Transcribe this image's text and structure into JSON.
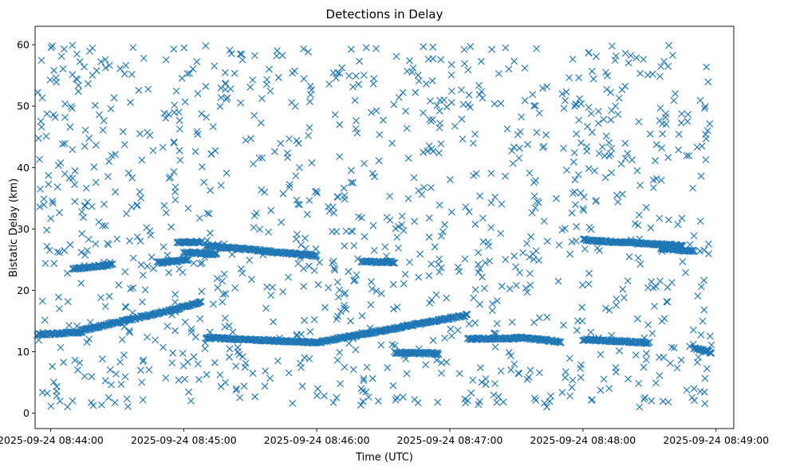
{
  "chart_data": {
    "type": "scatter",
    "title": "Detections in Delay",
    "xlabel": "Time (UTC)",
    "ylabel": "Bistatic Delay (km)",
    "x_axis_type": "time",
    "xlim": [
      "2025-09-24 08:43:53",
      "2025-09-24 08:49:08"
    ],
    "ylim": [
      -2.5,
      63
    ],
    "x_ticks": [
      "2025-09-24 08:44:00",
      "2025-09-24 08:45:00",
      "2025-09-24 08:46:00",
      "2025-09-24 08:47:00",
      "2025-09-24 08:48:00",
      "2025-09-24 08:49:00"
    ],
    "y_ticks": [
      0,
      10,
      20,
      30,
      40,
      50,
      60
    ],
    "marker": "x",
    "marker_color": "#1f77b4",
    "grid": false,
    "series": [
      {
        "description_of_points": "detections",
        "start_time": "2025-09-24 08:43:54",
        "end_time": "2025-09-24 08:48:58",
        "tracks": [
          {
            "t_start": "2025-09-24 08:43:54",
            "t_end": "2025-09-24 08:44:14",
            "y_start": 12.8,
            "y_end": 13.2
          },
          {
            "t_start": "2025-09-24 08:44:14",
            "t_end": "2025-09-24 08:44:57",
            "y_start": 13.5,
            "y_end": 17.0
          },
          {
            "t_start": "2025-09-24 08:44:57",
            "t_end": "2025-09-24 08:45:08",
            "y_start": 17.0,
            "y_end": 18.2
          },
          {
            "t_start": "2025-09-24 08:45:10",
            "t_end": "2025-09-24 08:46:00",
            "y_start": 12.3,
            "y_end": 11.5
          },
          {
            "t_start": "2025-09-24 08:46:00",
            "t_end": "2025-09-24 08:47:08",
            "y_start": 11.5,
            "y_end": 16.0
          },
          {
            "t_start": "2025-09-24 08:44:10",
            "t_end": "2025-09-24 08:44:28",
            "y_start": 23.5,
            "y_end": 24.2
          },
          {
            "t_start": "2025-09-24 08:44:48",
            "t_end": "2025-09-24 08:45:02",
            "y_start": 24.5,
            "y_end": 25.0
          },
          {
            "t_start": "2025-09-24 08:44:57",
            "t_end": "2025-09-24 08:45:08",
            "y_start": 27.8,
            "y_end": 27.9
          },
          {
            "t_start": "2025-09-24 08:45:00",
            "t_end": "2025-09-24 08:45:15",
            "y_start": 26.2,
            "y_end": 25.9
          },
          {
            "t_start": "2025-09-24 08:45:10",
            "t_end": "2025-09-24 08:46:00",
            "y_start": 27.3,
            "y_end": 25.6
          },
          {
            "t_start": "2025-09-24 08:46:20",
            "t_end": "2025-09-24 08:46:35",
            "y_start": 24.7,
            "y_end": 24.6
          },
          {
            "t_start": "2025-09-24 08:46:35",
            "t_end": "2025-09-24 08:46:55",
            "y_start": 9.9,
            "y_end": 9.7
          },
          {
            "t_start": "2025-09-24 08:47:08",
            "t_end": "2025-09-24 08:47:30",
            "y_start": 12.1,
            "y_end": 12.2
          },
          {
            "t_start": "2025-09-24 08:47:30",
            "t_end": "2025-09-24 08:47:50",
            "y_start": 12.4,
            "y_end": 11.6
          },
          {
            "t_start": "2025-09-24 08:48:00",
            "t_end": "2025-09-24 08:48:30",
            "y_start": 12.0,
            "y_end": 11.5
          },
          {
            "t_start": "2025-09-24 08:48:00",
            "t_end": "2025-09-24 08:48:45",
            "y_start": 28.2,
            "y_end": 27.3
          },
          {
            "t_start": "2025-09-24 08:48:35",
            "t_end": "2025-09-24 08:48:50",
            "y_start": 26.8,
            "y_end": 26.4
          },
          {
            "t_start": "2025-09-24 08:48:50",
            "t_end": "2025-09-24 08:48:58",
            "y_start": 10.6,
            "y_end": 9.9
          }
        ],
        "background_y_range": [
          1,
          60
        ]
      }
    ]
  }
}
